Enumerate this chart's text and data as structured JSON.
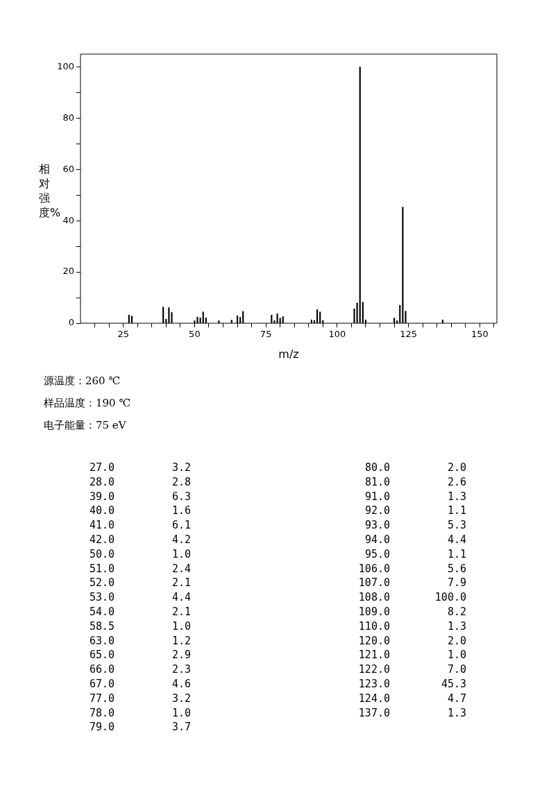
{
  "chart_data": [
    {
      "type": "bar",
      "xlabel": "m/z",
      "ylabel": "相对强度%",
      "x": [
        27,
        28,
        39,
        40,
        41,
        42,
        50,
        51,
        52,
        53,
        54,
        58.5,
        63,
        65,
        66,
        67,
        77,
        78,
        79,
        80,
        81,
        91,
        92,
        93,
        94,
        95,
        106,
        107,
        108,
        109,
        110,
        120,
        121,
        122,
        123,
        124,
        137
      ],
      "values": [
        3.2,
        2.8,
        6.3,
        1.6,
        6.1,
        4.2,
        1.0,
        2.4,
        2.1,
        4.4,
        2.1,
        1.0,
        1.2,
        2.9,
        2.3,
        4.6,
        3.2,
        1.0,
        3.7,
        2.0,
        2.6,
        1.3,
        1.1,
        5.3,
        4.4,
        1.1,
        5.6,
        7.9,
        100.0,
        8.2,
        1.3,
        2.0,
        1.0,
        7.0,
        45.3,
        4.7,
        1.3
      ],
      "color": "#000000",
      "xlim": [
        10,
        156
      ],
      "xticks": [
        {
          "value": 15,
          "label": null
        },
        {
          "value": 20,
          "label": null
        },
        25,
        {
          "value": 30,
          "label": null
        },
        {
          "value": 35,
          "label": null
        },
        {
          "value": 40,
          "label": null
        },
        {
          "value": 45,
          "label": null
        },
        50,
        {
          "value": 55,
          "label": null
        },
        {
          "value": 60,
          "label": null
        },
        {
          "value": 65,
          "label": null
        },
        {
          "value": 70,
          "label": null
        },
        75,
        {
          "value": 80,
          "label": null
        },
        {
          "value": 85,
          "label": null
        },
        {
          "value": 90,
          "label": null
        },
        {
          "value": 95,
          "label": null
        },
        100,
        {
          "value": 105,
          "label": null
        },
        {
          "value": 110,
          "label": null
        },
        {
          "value": 115,
          "label": null
        },
        {
          "value": 120,
          "label": null
        },
        125,
        {
          "value": 130,
          "label": null
        },
        {
          "value": 135,
          "label": null
        },
        {
          "value": 140,
          "label": null
        },
        {
          "value": 145,
          "label": null
        },
        150,
        {
          "value": 155,
          "label": null
        }
      ],
      "ylim": [
        0,
        105
      ],
      "yticks": [
        0,
        {
          "value": 10,
          "label": null
        },
        20,
        {
          "value": 30,
          "label": null
        },
        40,
        {
          "value": 50,
          "label": null
        },
        60,
        {
          "value": 70,
          "label": null
        },
        80,
        {
          "value": 90,
          "label": null
        },
        100
      ],
      "grid": false,
      "legend": false,
      "annotations": [
        "源温度：260 ℃",
        "样品温度：190 ℃",
        "电子能量：75 eV"
      ]
    },
    {
      "type": "other",
      "annotations": [
        "27.0",
        "3.2",
        "28.0",
        "2.8",
        "39.0",
        "6.3",
        "40.0",
        "1.6",
        "41.0",
        "6.1",
        "42.0",
        "4.2",
        "50.0",
        "1.0",
        "51.0",
        "2.4",
        "52.0",
        "2.1",
        "53.0",
        "4.4",
        "54.0",
        "2.1",
        "58.5",
        "1.0",
        "63.0",
        "1.2",
        "65.0",
        "2.9",
        "66.0",
        "2.3",
        "67.0",
        "4.6",
        "77.0",
        "3.2",
        "78.0",
        "1.0",
        "79.0",
        "3.7",
        "80.0",
        "2.0",
        "81.0",
        "2.6",
        "91.0",
        "1.3",
        "92.0",
        "1.1",
        "93.0",
        "5.3",
        "94.0",
        "4.4",
        "95.0",
        "1.1",
        "106.0",
        "5.6",
        "107.0",
        "7.9",
        "108.0",
        "100.0",
        "109.0",
        "8.2",
        "110.0",
        "1.3",
        "120.0",
        "2.0",
        "121.0",
        "1.0",
        "122.0",
        "7.0",
        "123.0",
        "45.3",
        "124.0",
        "4.7",
        "137.0",
        "1.3"
      ]
    }
  ]
}
